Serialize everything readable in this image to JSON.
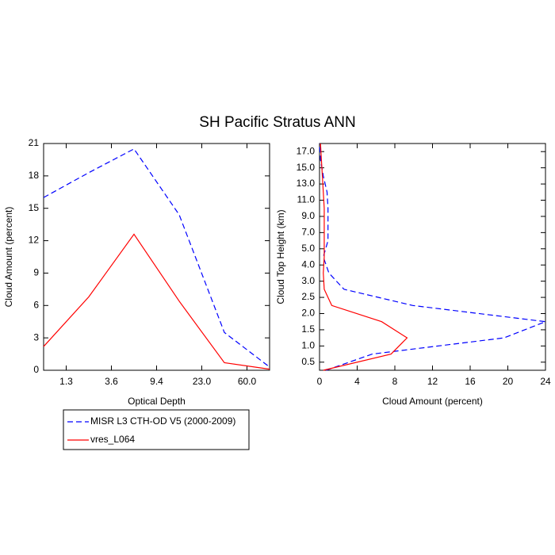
{
  "title": "SH Pacific Stratus ANN",
  "chart_data": [
    {
      "type": "line",
      "orientation": "vertical",
      "xlabel": "Optical Depth",
      "ylabel": "Cloud Amount (percent)",
      "x": [
        0,
        1,
        2,
        3,
        4,
        5
      ],
      "xlim": [
        0,
        5
      ],
      "xticks": [
        {
          "value": 0.5,
          "label": "1.3"
        },
        {
          "value": 1.5,
          "label": "3.6"
        },
        {
          "value": 2.5,
          "label": "9.4"
        },
        {
          "value": 3.5,
          "label": "23.0"
        },
        {
          "value": 4.5,
          "label": "60.0"
        }
      ],
      "ylim": [
        0,
        21
      ],
      "yticks": [
        0,
        3,
        6,
        9,
        12,
        15,
        18,
        21
      ],
      "series": [
        {
          "name": "MISR L3 CTH-OD V5 (2000-2009)",
          "color": "#0000ff",
          "dash": true,
          "values": [
            16.0,
            18.3,
            20.5,
            14.4,
            3.5,
            0.3
          ]
        },
        {
          "name": "vres_L064",
          "color": "#ff0000",
          "dash": false,
          "values": [
            2.2,
            6.8,
            12.6,
            6.4,
            0.7,
            0.1
          ]
        }
      ]
    },
    {
      "type": "line",
      "orientation": "horizontal",
      "xlabel": "Cloud Amount (percent)",
      "ylabel": "Cloud Top Height (km)",
      "xlim": [
        0,
        24
      ],
      "xticks": [
        0,
        4,
        8,
        12,
        16,
        20,
        24
      ],
      "y": [
        0,
        1,
        2,
        3,
        4,
        5,
        6,
        7,
        8,
        9,
        10,
        11,
        12,
        13,
        14
      ],
      "ylim": [
        0,
        14
      ],
      "yticks": [
        0.5,
        {
          "value": 1.5,
          "label": "1.0"
        },
        {
          "value": 2.5,
          "label": "1.5"
        },
        {
          "value": 3.5,
          "label": "2.0"
        },
        {
          "value": 4.5,
          "label": "2.5"
        },
        {
          "value": 5.5,
          "label": "3.0"
        },
        {
          "value": 6.5,
          "label": "4.0"
        },
        {
          "value": 7.5,
          "label": "5.0"
        },
        {
          "value": 8.5,
          "label": "7.0"
        },
        {
          "value": 9.5,
          "label": "9.0"
        },
        {
          "value": 10.5,
          "label": "11.0"
        },
        {
          "value": 11.5,
          "label": "13.0"
        },
        {
          "value": 12.5,
          "label": "15.0"
        },
        {
          "value": 13.5,
          "label": "17.0"
        }
      ],
      "series": [
        {
          "color": "#0000ff",
          "dash": true,
          "values": [
            0.7,
            5.6,
            19.6,
            24,
            9.9,
            2.6,
            1.0,
            0.4,
            0.9,
            0.9,
            0.9,
            0.8,
            0.4,
            0.1,
            0.0
          ]
        },
        {
          "color": "#ff0000",
          "dash": false,
          "values": [
            0.4,
            7.6,
            9.3,
            6.6,
            1.3,
            0.5,
            0.4,
            0.5,
            0.5,
            0.5,
            0.5,
            0.4,
            0.3,
            0.2,
            0.1
          ]
        }
      ]
    }
  ]
}
